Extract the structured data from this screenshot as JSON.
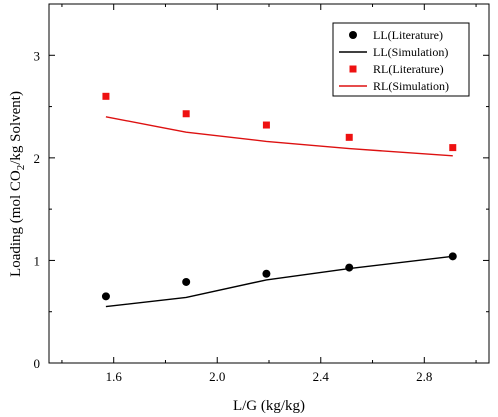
{
  "chart_data": {
    "type": "scatter",
    "xlabel": "L/G (kg/kg)",
    "ylabel_parts": [
      "Loading (mol CO",
      "2",
      "/kg Solvent)"
    ],
    "xlim": [
      1.35,
      3.05
    ],
    "ylim": [
      0,
      3.5
    ],
    "x_ticks": [
      1.6,
      2.0,
      2.4,
      2.8
    ],
    "x_tick_labels": [
      "1.6",
      "2.0",
      "2.4",
      "2.8"
    ],
    "y_ticks": [
      0,
      1,
      2,
      3
    ],
    "y_tick_labels": [
      "0",
      "1",
      "2",
      "3"
    ],
    "legend_position": "top-right",
    "series": [
      {
        "name": "LL(Literature)",
        "kind": "marker",
        "marker": "circle",
        "color": "#000000",
        "x": [
          1.57,
          1.88,
          2.19,
          2.51,
          2.91
        ],
        "y": [
          0.65,
          0.79,
          0.87,
          0.93,
          1.04
        ]
      },
      {
        "name": "LL(Simulation)",
        "kind": "line",
        "color": "#000000",
        "x": [
          1.57,
          1.88,
          2.19,
          2.51,
          2.91
        ],
        "y": [
          0.55,
          0.64,
          0.81,
          0.92,
          1.04
        ]
      },
      {
        "name": "RL(Literature)",
        "kind": "marker",
        "marker": "square",
        "color": "#ee1111",
        "x": [
          1.57,
          1.88,
          2.19,
          2.51,
          2.91
        ],
        "y": [
          2.6,
          2.43,
          2.32,
          2.2,
          2.1
        ]
      },
      {
        "name": "RL(Simulation)",
        "kind": "line",
        "color": "#dd1111",
        "x": [
          1.57,
          1.88,
          2.19,
          2.51,
          2.91
        ],
        "y": [
          2.4,
          2.25,
          2.16,
          2.09,
          2.02
        ]
      }
    ]
  }
}
